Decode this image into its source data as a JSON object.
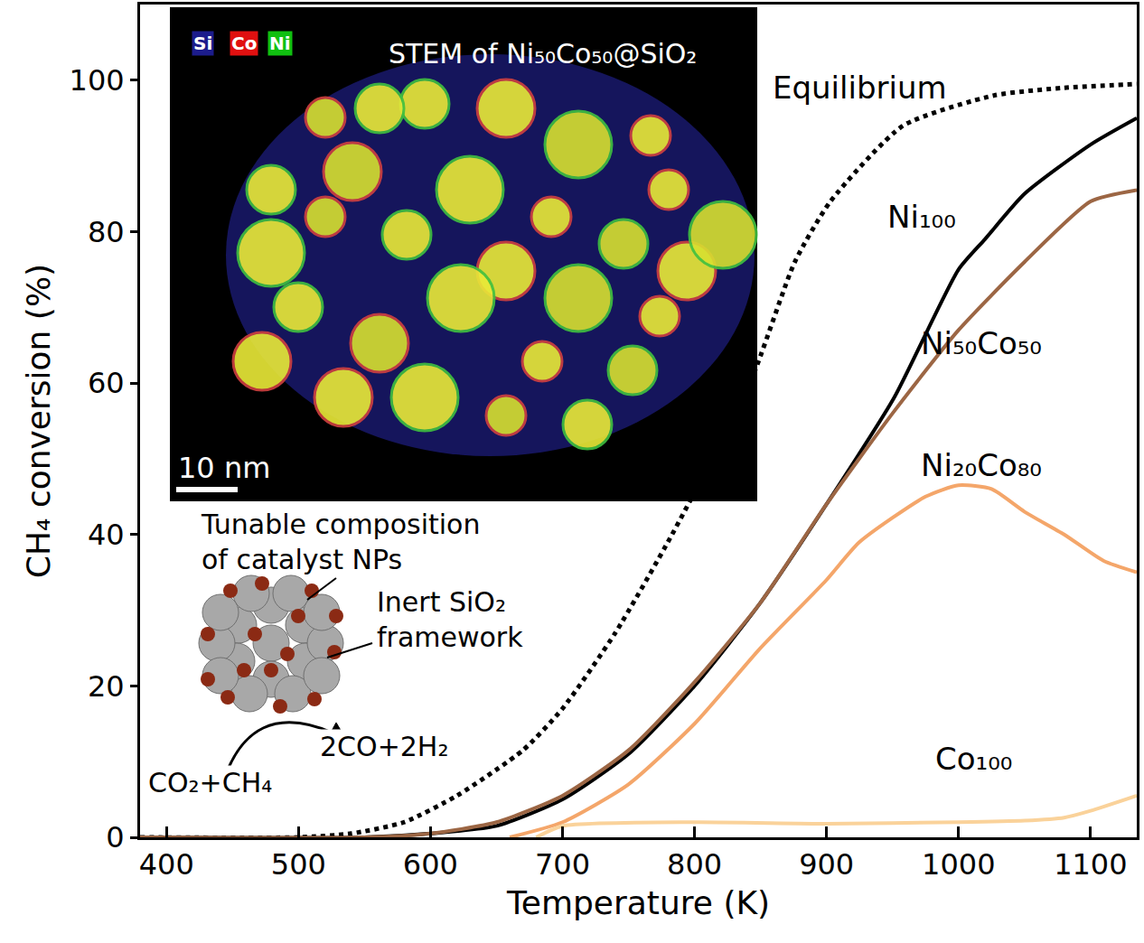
{
  "chart_data": {
    "type": "line",
    "x_label": "Temperature (K)",
    "y_label": "CH₄ conversion (%)",
    "xlim": [
      380,
      1135
    ],
    "ylim": [
      0,
      110
    ],
    "xticks": [
      400,
      500,
      600,
      700,
      800,
      900,
      1000,
      1100
    ],
    "yticks": [
      0,
      20,
      40,
      60,
      80,
      100
    ],
    "grid": false,
    "series": [
      {
        "name": "Equilibrium",
        "color": "#000000",
        "line_style": "dotted",
        "x": [
          380,
          500,
          540,
          580,
          620,
          670,
          700,
          740,
          783,
          842,
          876,
          903,
          958,
          1027,
          1080,
          1135
        ],
        "values": [
          0,
          0,
          0.5,
          2,
          5.5,
          11.5,
          17,
          27,
          40,
          60,
          76,
          84,
          94,
          98,
          99,
          99.5
        ]
      },
      {
        "name": "Ni₁₀₀",
        "color": "#000000",
        "line_style": "solid",
        "x": [
          380,
          550,
          600,
          650,
          700,
          750,
          800,
          850,
          900,
          951,
          1000,
          1020,
          1050,
          1100,
          1135
        ],
        "values": [
          0,
          0,
          0.5,
          1.5,
          5,
          11,
          20,
          31,
          44,
          58,
          75,
          79,
          85,
          91.5,
          95
        ]
      },
      {
        "name": "Ni₅₀Co₅₀",
        "color": "#9c6644",
        "line_style": "solid",
        "x": [
          380,
          550,
          600,
          650,
          700,
          750,
          800,
          850,
          900,
          950,
          1000,
          1050,
          1100,
          1135
        ],
        "values": [
          0,
          0,
          0.5,
          2,
          5.5,
          11.5,
          20.5,
          31,
          44,
          56,
          67,
          76,
          84,
          85.5
        ]
      },
      {
        "name": "Ni₂₀Co₈₀",
        "color": "#f4a66a",
        "line_style": "solid",
        "x": [
          660,
          700,
          750,
          800,
          850,
          900,
          925,
          975,
          1000,
          1025,
          1050,
          1080,
          1110,
          1135
        ],
        "values": [
          0,
          2,
          7,
          15,
          25,
          34,
          39,
          45,
          46.5,
          46,
          43,
          40,
          36.5,
          35
        ]
      },
      {
        "name": "Co₁₀₀",
        "color": "#fad29a",
        "line_style": "solid",
        "x": [
          680,
          700,
          800,
          900,
          1000,
          1050,
          1080,
          1100,
          1135
        ],
        "values": [
          0,
          1.5,
          2,
          1.8,
          2,
          2.2,
          2.6,
          3.5,
          5.5
        ]
      }
    ],
    "annotations": {
      "inset_title": "STEM of Ni₅₀Co₅₀@SiO₂",
      "inset_elements": [
        {
          "label": "Si",
          "color": "#1c1c8c"
        },
        {
          "label": "Co",
          "color": "#e01010"
        },
        {
          "label": "Ni",
          "color": "#10c010"
        }
      ],
      "scale_bar": "10 nm",
      "schematic_title": [
        "Tunable composition",
        "of catalyst NPs"
      ],
      "schematic_support": [
        "Inert SiO₂",
        "framework"
      ],
      "reactants": "CO₂+CH₄",
      "products": "2CO+2H₂"
    }
  }
}
